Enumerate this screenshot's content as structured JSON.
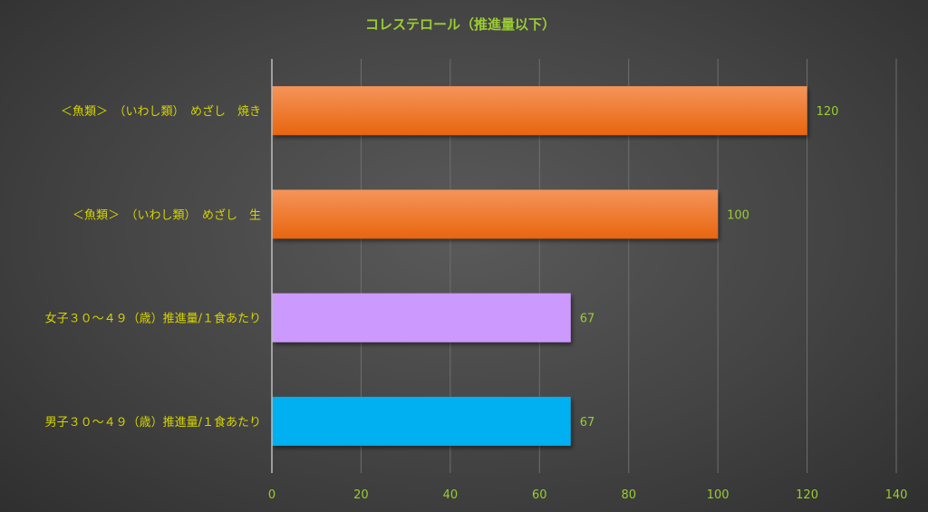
{
  "chart_data": {
    "type": "bar",
    "orientation": "horizontal",
    "title": "コレステロール（推進量以下）",
    "categories": [
      "＜魚類＞　（いわし類）　めざし　焼き",
      "＜魚類＞　（いわし類）　めざし　生",
      "女子３０～４９（歳）推進量/１食あたり",
      "男子３０～４９（歳）推進量/１食あたり"
    ],
    "values": [
      120,
      100,
      67,
      67
    ],
    "bar_colors": [
      "#F07A2A",
      "#F07A2A",
      "#CC99FF",
      "#00B0F0"
    ],
    "xlim": [
      0,
      140
    ],
    "xticks": [
      0,
      20,
      40,
      60,
      80,
      100,
      120,
      140
    ],
    "grid": true,
    "legend": "none"
  },
  "colors": {
    "title": "#9ACD32",
    "category_label": "#D4D400",
    "tick_label": "#9ACD32",
    "data_label": "#9ACD32"
  }
}
